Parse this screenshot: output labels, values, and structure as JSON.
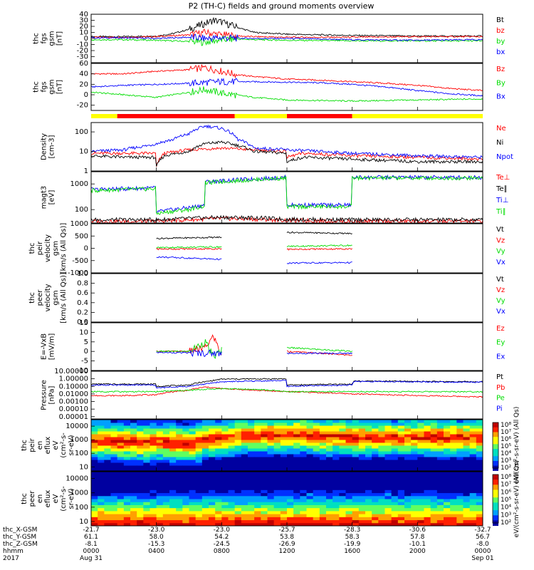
{
  "title": "P2 (TH-C) fields and ground moments overview",
  "colors": {
    "black": "#000000",
    "red": "#ff0000",
    "green": "#00dd00",
    "blue": "#0000ff",
    "mode_yellow": "#ffff00",
    "mode_red": "#ff0000"
  },
  "chart_data": [
    {
      "type": "line",
      "id": "fgs_gsm",
      "ylabel": [
        "thc",
        "fgs",
        "gsm",
        "[nT]"
      ],
      "ylim": [
        -40,
        40
      ],
      "ytick_labels": [
        "40",
        "30",
        "20",
        "10",
        "0",
        "-10",
        "-20",
        "-30"
      ],
      "series": [
        {
          "name": "Bt",
          "color": "#000000",
          "x": [
            0,
            2,
            4,
            5,
            6,
            7,
            7.5,
            8,
            9,
            10,
            12,
            14,
            16,
            20,
            24
          ],
          "values": [
            3,
            3,
            4,
            8,
            15,
            25,
            30,
            27,
            18,
            10,
            7,
            6,
            5,
            4,
            4
          ]
        },
        {
          "name": "bz",
          "color": "#ff0000",
          "x": [
            0,
            2,
            4,
            6,
            7,
            8,
            9,
            10,
            12,
            16,
            20,
            24
          ],
          "values": [
            2,
            2,
            3,
            6,
            10,
            6,
            4,
            3,
            2,
            2,
            3,
            3
          ]
        },
        {
          "name": "by",
          "color": "#00dd00",
          "x": [
            0,
            2,
            4,
            6,
            7,
            8,
            9,
            10,
            12,
            16,
            20,
            24
          ],
          "values": [
            -2,
            -2,
            -3,
            -5,
            -6,
            -2,
            -1,
            -2,
            -3,
            -4,
            -4,
            -4
          ]
        },
        {
          "name": "bx",
          "color": "#0000ff",
          "x": [
            0,
            2,
            4,
            6,
            7,
            8,
            10,
            12,
            16,
            20,
            24
          ],
          "values": [
            1,
            1,
            0,
            2,
            0,
            1,
            0,
            0,
            -2,
            -3,
            -2
          ]
        }
      ]
    },
    {
      "type": "line",
      "id": "fgs_gse",
      "ylabel": [
        "thc",
        "fgs",
        "gsm",
        "[nT]"
      ],
      "ylim": [
        -30,
        60
      ],
      "ytick_labels": [
        "60",
        "40",
        "20",
        "0",
        "-20"
      ],
      "series": [
        {
          "name": "Bz",
          "color": "#ff0000",
          "x": [
            0,
            2,
            4,
            6,
            7,
            8,
            9,
            10,
            12,
            14,
            16,
            18,
            20,
            22,
            24
          ],
          "values": [
            40,
            40,
            45,
            48,
            52,
            45,
            38,
            35,
            30,
            28,
            25,
            22,
            18,
            12,
            8
          ]
        },
        {
          "name": "By",
          "color": "#00dd00",
          "x": [
            0,
            2,
            4,
            6,
            7,
            8,
            10,
            12,
            16,
            20,
            24
          ],
          "values": [
            5,
            0,
            -5,
            5,
            10,
            3,
            -5,
            -10,
            -12,
            -10,
            -8
          ]
        },
        {
          "name": "Bx",
          "color": "#0000ff",
          "x": [
            0,
            2,
            4,
            6,
            8,
            10,
            12,
            14,
            16,
            18,
            20,
            22,
            24
          ],
          "values": [
            15,
            18,
            20,
            22,
            25,
            25,
            24,
            23,
            20,
            15,
            8,
            2,
            -2
          ]
        }
      ]
    },
    {
      "type": "line",
      "id": "density",
      "ylabel": [
        "Density",
        "[cm-3]"
      ],
      "ylim": [
        1,
        300
      ],
      "log": true,
      "ytick_labels": [
        "100",
        "10",
        "1"
      ],
      "series": [
        {
          "name": "Ne",
          "color": "#ff0000",
          "x": [
            0,
            2,
            3.99,
            4,
            4.5,
            6,
            8,
            10,
            11.99,
            12,
            13,
            16,
            20,
            24
          ],
          "values": [
            8,
            8,
            8,
            1.5,
            8,
            12,
            15,
            12,
            10,
            5,
            8,
            6,
            5,
            4
          ]
        },
        {
          "name": "Ni",
          "color": "#000000",
          "x": [
            0,
            2,
            3.99,
            4,
            4.5,
            6,
            7,
            8,
            10,
            11.99,
            12,
            13,
            16,
            20,
            24
          ],
          "values": [
            6,
            5,
            5,
            1.5,
            6,
            10,
            25,
            30,
            10,
            8,
            3,
            5,
            4,
            3,
            3
          ]
        },
        {
          "name": "Npot",
          "color": "#0000ff",
          "x": [
            0,
            2,
            3.5,
            4,
            5,
            6,
            7,
            8,
            9,
            10,
            12,
            14,
            16,
            20,
            24
          ],
          "values": [
            10,
            12,
            20,
            25,
            40,
            80,
            200,
            150,
            40,
            15,
            12,
            10,
            8,
            6,
            5
          ]
        }
      ]
    },
    {
      "type": "line",
      "id": "temperature",
      "ylabel": [
        "magt3",
        "[eV]"
      ],
      "ylim": [
        30,
        3000
      ],
      "log": true,
      "ytick_labels": [
        "1000",
        "100"
      ],
      "series": [
        {
          "name": "Te⊥",
          "color": "#ff0000",
          "x": [
            0,
            4,
            6,
            8,
            10,
            12,
            16,
            20,
            24
          ],
          "values": [
            35,
            35,
            40,
            45,
            42,
            38,
            35,
            35,
            35
          ]
        },
        {
          "name": "Te∥",
          "color": "#000000",
          "x": [
            0,
            4,
            6,
            8,
            10,
            12,
            16,
            20,
            24
          ],
          "values": [
            40,
            40,
            45,
            50,
            48,
            42,
            40,
            40,
            40
          ]
        },
        {
          "name": "Ti⊥",
          "color": "#0000ff",
          "x": [
            0,
            3.99,
            4,
            6,
            6.99,
            7,
            11.99,
            12,
            15.99,
            16,
            24
          ],
          "values": [
            600,
            700,
            80,
            120,
            150,
            1200,
            1800,
            150,
            150,
            1800,
            1800
          ]
        },
        {
          "name": "Ti∥",
          "color": "#00dd00",
          "x": [
            0,
            3.99,
            4,
            6,
            6.99,
            7,
            11.99,
            12,
            15.99,
            16,
            24
          ],
          "values": [
            550,
            650,
            70,
            100,
            140,
            1100,
            1700,
            130,
            130,
            1700,
            1700
          ]
        }
      ]
    },
    {
      "type": "line",
      "id": "peir_velocity",
      "ylabel": [
        "thc",
        "peir",
        "velocity",
        "gsm",
        "[km/s (All Qs)]"
      ],
      "ylim": [
        -1000,
        1000
      ],
      "ytick_labels": [
        "1000",
        "500",
        "0",
        "-500",
        "-1000"
      ],
      "series": [
        {
          "name": "Vt",
          "color": "#000000",
          "x": [
            4,
            8
          ],
          "values": [
            400,
            450
          ],
          "x2": [
            12,
            16
          ],
          "values2": [
            650,
            600
          ]
        },
        {
          "name": "Vz",
          "color": "#ff0000",
          "x": [
            4,
            8
          ],
          "values": [
            -30,
            -20
          ],
          "x2": [
            12,
            16
          ],
          "values2": [
            -40,
            -20
          ]
        },
        {
          "name": "Vy",
          "color": "#00dd00",
          "x": [
            4,
            8
          ],
          "values": [
            30,
            60
          ],
          "x2": [
            12,
            16
          ],
          "values2": [
            80,
            120
          ]
        },
        {
          "name": "Vx",
          "color": "#0000ff",
          "x": [
            4,
            8
          ],
          "values": [
            -350,
            -450
          ],
          "x2": [
            12,
            16
          ],
          "values2": [
            -600,
            -580
          ]
        }
      ]
    },
    {
      "type": "line",
      "id": "peer_velocity",
      "ylabel": [
        "thc",
        "peer",
        "velocity",
        "gsm",
        "[km/s (All Qs)]"
      ],
      "ylim": [
        0,
        1
      ],
      "ytick_labels": [
        "1.0",
        "0.8",
        "0.6",
        "0.4",
        "0.2",
        "0.0"
      ],
      "series": [
        {
          "name": "Vt",
          "color": "#000000",
          "values": []
        },
        {
          "name": "Vz",
          "color": "#ff0000",
          "values": []
        },
        {
          "name": "Vy",
          "color": "#00dd00",
          "values": []
        },
        {
          "name": "Vx",
          "color": "#0000ff",
          "values": []
        }
      ]
    },
    {
      "type": "line",
      "id": "efield",
      "ylabel": [
        "E=-VxB",
        "[mV/m]"
      ],
      "ylim": [
        -10,
        15
      ],
      "ytick_labels": [
        "15",
        "10",
        "5",
        "0",
        "-5",
        "-10"
      ],
      "series": [
        {
          "name": "Ez",
          "color": "#ff0000",
          "x": [
            4,
            6,
            7,
            7.5,
            8
          ],
          "values": [
            0,
            0,
            2,
            8,
            -2
          ],
          "x2": [
            12,
            16
          ],
          "values2": [
            0,
            -2
          ]
        },
        {
          "name": "Ey",
          "color": "#00dd00",
          "x": [
            4,
            6,
            7,
            7.5,
            8
          ],
          "values": [
            0,
            0,
            5,
            -3,
            1
          ],
          "x2": [
            12,
            16
          ],
          "values2": [
            2,
            0
          ]
        },
        {
          "name": "Ex",
          "color": "#0000ff",
          "x": [
            4,
            8
          ],
          "values": [
            -0.5,
            -1
          ],
          "x2": [
            12,
            16
          ],
          "values2": [
            -1,
            -1
          ]
        }
      ]
    },
    {
      "type": "line",
      "id": "pressure",
      "ylabel": [
        "Pressure",
        "[nPa]"
      ],
      "ylim": [
        5e-06,
        10
      ],
      "log": true,
      "ytick_labels": [
        "10.00000",
        "1.00000",
        "0.10000",
        "0.01000",
        "0.00100",
        "0.00010",
        "0.00001"
      ],
      "series": [
        {
          "name": "Pt",
          "color": "#000000",
          "x": [
            0,
            3.99,
            4,
            6,
            7,
            7.5,
            8,
            11.99,
            12,
            16,
            16.1,
            24
          ],
          "values": [
            0.2,
            0.2,
            0.1,
            0.15,
            0.4,
            0.6,
            0.9,
            1.0,
            0.15,
            0.2,
            0.5,
            0.4
          ]
        },
        {
          "name": "Pb",
          "color": "#ff0000",
          "x": [
            0,
            2,
            4,
            6,
            7,
            8,
            10,
            12,
            14,
            16,
            18,
            20,
            22,
            24
          ],
          "values": [
            0.006,
            0.006,
            0.008,
            0.03,
            0.08,
            0.05,
            0.03,
            0.02,
            0.015,
            0.01,
            0.008,
            0.006,
            0.005,
            0.004
          ]
        },
        {
          "name": "Pe",
          "color": "#00dd00",
          "x": [
            0,
            4,
            6,
            8,
            10,
            12,
            16,
            20,
            24
          ],
          "values": [
            0.02,
            0.02,
            0.03,
            0.05,
            0.04,
            0.02,
            0.02,
            0.02,
            0.02
          ]
        },
        {
          "name": "Pi",
          "color": "#0000ff",
          "x": [
            0,
            3.99,
            4,
            6,
            7,
            8,
            11.99,
            12,
            16,
            16.1,
            24
          ],
          "values": [
            0.15,
            0.15,
            0.06,
            0.1,
            0.2,
            0.4,
            0.6,
            0.1,
            0.15,
            0.45,
            0.35
          ]
        }
      ]
    },
    {
      "type": "heatmap",
      "id": "peir_spec",
      "ylabel": [
        "thc",
        "peir",
        "en",
        "eflux",
        "eV",
        "(cm²-s-",
        "sr-eV)"
      ],
      "ylim": [
        5,
        30000
      ],
      "log": true,
      "ytick_labels": [
        "10000",
        "1000",
        "100",
        "10"
      ],
      "colorbar_label": "eV/(cm²-s-sr-eV) (All Qs)",
      "colorbar_ticks": [
        "10⁸",
        "10⁷",
        "10⁶",
        "10⁵",
        "10⁴",
        "10³",
        "10²"
      ],
      "peak_energy_eV": [
        [
          0,
          800
        ],
        [
          4,
          700
        ],
        [
          6,
          500
        ],
        [
          8,
          1500
        ],
        [
          12,
          2500
        ],
        [
          16,
          1500
        ],
        [
          24,
          1500
        ]
      ]
    },
    {
      "type": "heatmap",
      "id": "peer_spec",
      "ylabel": [
        "thc",
        "peer",
        "en",
        "eflux",
        "eV",
        "(cm²-s-",
        "sr-eV)"
      ],
      "ylim": [
        5,
        30000
      ],
      "log": true,
      "ytick_labels": [
        "10000",
        "1000",
        "100",
        "10"
      ],
      "colorbar_label": "eV/(cm²-s-sr-eV) (All Qs)",
      "colorbar_ticks": [
        "10⁸",
        "10⁷",
        "10⁶",
        "10⁵",
        "10⁴",
        "10³",
        "10²"
      ],
      "peak_energy_eV": [
        [
          0,
          50
        ],
        [
          24,
          50
        ]
      ]
    }
  ],
  "modebar": [
    {
      "x0": 0,
      "x1": 1.6,
      "color": "#ffff00"
    },
    {
      "x0": 1.6,
      "x1": 8.8,
      "color": "#ff0000"
    },
    {
      "x0": 8.8,
      "x1": 12,
      "color": "#ffff00"
    },
    {
      "x0": 12,
      "x1": 16,
      "color": "#ff0000"
    },
    {
      "x0": 16,
      "x1": 24,
      "color": "#ffff00"
    }
  ],
  "xaxis": {
    "tick_hours": [
      0,
      4,
      8,
      12,
      16,
      20,
      24
    ],
    "rows": [
      {
        "label": "thc_X-GSM",
        "values": [
          "-21.7",
          "-23.0",
          "-23.0",
          "-25.7",
          "-28.3",
          "-30.6",
          "-32.7"
        ]
      },
      {
        "label": "thc_Y-GSM",
        "values": [
          "61.1",
          "58.0",
          "54.2",
          "53.8",
          "58.3",
          "57.8",
          "56.7"
        ]
      },
      {
        "label": "thc_Z-GSM",
        "values": [
          "-8.1",
          "-15.3",
          "-24.5",
          "-26.9",
          "-19.9",
          "-10.1",
          "-8.0"
        ]
      },
      {
        "label": "hhmm",
        "values": [
          "0000",
          "0400",
          "0800",
          "1200",
          "1600",
          "2000",
          "0000"
        ]
      },
      {
        "label": "2017",
        "values": [
          "Aug 31",
          "",
          "",
          "",
          "",
          "",
          "Sep 01"
        ]
      }
    ]
  }
}
